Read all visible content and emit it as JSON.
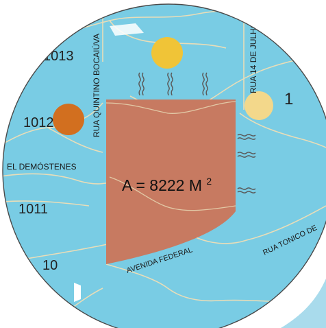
{
  "colors": {
    "water": "#79cce4",
    "land_line": "#e9ddb8",
    "plot_fill": "#c77a61",
    "sun_high": "#f0c437",
    "sun_east": "#f3d88b",
    "sun_west": "#d26f1f",
    "lens_border": "#4a4a4a"
  },
  "streets": {
    "quintino": "RUA QUINTINO BOCAIÚVA",
    "julho": "RUA 14 DE JULHO",
    "demostenes": "EL DEMÓSTENES",
    "federal": "AVENIDA FEDERAL",
    "tonico": "RUA TONICO DE"
  },
  "parcel_numbers": {
    "n1013": "1013",
    "n1012": "1012",
    "n1011": "1011",
    "n1010": "10",
    "n1": "1"
  },
  "plot": {
    "area_prefix": "A = 8222 M",
    "area_exponent": "2"
  },
  "icons": {
    "heat": "heat-wave-icon",
    "wind": "wind-wave-icon",
    "sun": "sun-icon"
  }
}
